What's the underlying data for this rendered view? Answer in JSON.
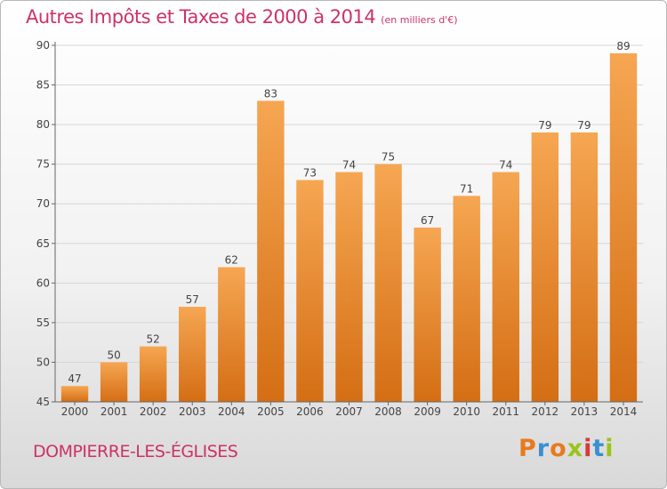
{
  "title": "Autres Impôts et Taxes de 2000 à 2014",
  "unit": "(en milliers d'€)",
  "commune": "DOMPIERRE-LES-ÉGLISES",
  "brand": {
    "text": "Proxiti",
    "colors": [
      "#e87a1e",
      "#3a8fd1",
      "#e87a1e",
      "#9bc31c",
      "#d63b3b",
      "#3a8fd1",
      "#9bc31c"
    ]
  },
  "colors": {
    "bar_top": "#f6a652",
    "bar_bottom": "#d46e14",
    "title": "#cc3366",
    "axis": "#444444"
  },
  "chart_data": {
    "type": "bar",
    "categories": [
      "2000",
      "2001",
      "2002",
      "2003",
      "2004",
      "2005",
      "2006",
      "2007",
      "2008",
      "2009",
      "2010",
      "2011",
      "2012",
      "2013",
      "2014"
    ],
    "values": [
      47,
      50,
      52,
      57,
      62,
      83,
      73,
      74,
      75,
      67,
      71,
      74,
      79,
      79,
      89
    ],
    "ylim": [
      45,
      90
    ],
    "yticks": [
      45,
      50,
      55,
      60,
      65,
      70,
      75,
      80,
      85,
      90
    ],
    "grid": true,
    "legend": "none"
  }
}
